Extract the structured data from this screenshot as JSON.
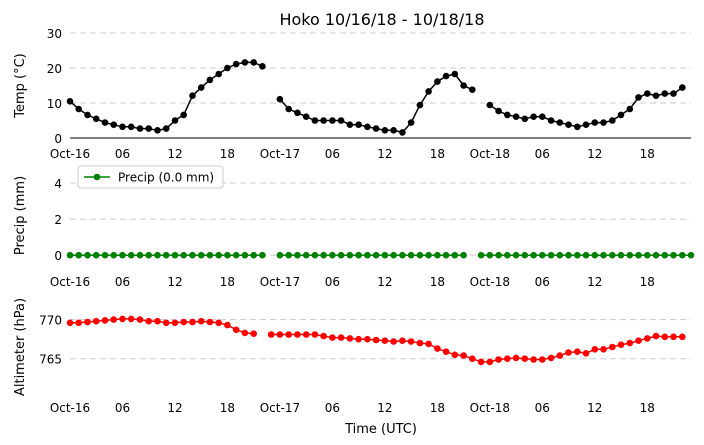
{
  "chart_data": {
    "title": "Hoko 10/16/18 - 10/18/18",
    "xlabel": "Time (UTC)",
    "x_unit": "hours since Oct-16 00 UTC",
    "x_range": [
      0,
      71
    ],
    "x_ticks": [
      {
        "v": 0,
        "label": "Oct-16"
      },
      {
        "v": 6,
        "label": "06"
      },
      {
        "v": 12,
        "label": "12"
      },
      {
        "v": 18,
        "label": "18"
      },
      {
        "v": 24,
        "label": "Oct-17"
      },
      {
        "v": 30,
        "label": "06"
      },
      {
        "v": 36,
        "label": "12"
      },
      {
        "v": 42,
        "label": "18"
      },
      {
        "v": 48,
        "label": "Oct-18"
      },
      {
        "v": 54,
        "label": "06"
      },
      {
        "v": 60,
        "label": "12"
      },
      {
        "v": 66,
        "label": "18"
      }
    ],
    "panels": [
      {
        "key": "temp",
        "type": "line",
        "ylabel": "Temp ($^\\circ$C)",
        "ylabel_text": "Temp (°C)",
        "ylim": [
          0,
          30
        ],
        "yticks": [
          0,
          10,
          20,
          30
        ],
        "grid": true,
        "color": "#000000",
        "x": [
          0,
          1,
          2,
          3,
          4,
          5,
          6,
          7,
          8,
          9,
          10,
          11,
          12,
          13,
          14,
          15,
          16,
          17,
          18,
          19,
          20,
          21,
          22,
          23,
          24,
          25,
          26,
          27,
          28,
          29,
          30,
          31,
          32,
          33,
          34,
          35,
          36,
          37,
          38,
          39,
          40,
          41,
          42,
          43,
          44,
          45,
          46,
          47,
          48,
          49,
          50,
          51,
          52,
          53,
          54,
          55,
          56,
          57,
          58,
          59,
          60,
          61,
          62,
          63,
          64,
          65,
          66,
          67,
          68,
          69,
          70,
          71
        ],
        "values": [
          10.5,
          8.3,
          6.6,
          5.5,
          4.4,
          3.8,
          3.2,
          3.2,
          2.7,
          2.7,
          2.2,
          2.7,
          5.0,
          6.6,
          12.1,
          14.4,
          16.6,
          18.3,
          20.0,
          21.1,
          21.6,
          21.6,
          20.5,
          null,
          11.1,
          8.3,
          7.2,
          6.1,
          5.0,
          5.0,
          5.0,
          5.0,
          3.8,
          3.8,
          3.2,
          2.7,
          2.2,
          2.2,
          1.6,
          4.4,
          9.4,
          13.3,
          16.1,
          17.7,
          18.3,
          15.0,
          13.8,
          null,
          9.4,
          7.7,
          6.6,
          6.1,
          5.5,
          6.1,
          6.1,
          5.0,
          4.4,
          3.8,
          3.2,
          3.8,
          4.4,
          4.4,
          5.0,
          6.6,
          8.3,
          11.6,
          12.7,
          12.1,
          12.7,
          12.7,
          14.4,
          null
        ]
      },
      {
        "key": "precip",
        "type": "line",
        "ylabel": "Precip (mm)",
        "ylim": [
          -0.6,
          5
        ],
        "yticks": [
          0,
          2,
          4
        ],
        "grid": true,
        "color": "#008000",
        "legend": {
          "label": "Precip (0.0 mm)",
          "loc": "upper left"
        },
        "x": [
          0,
          1,
          2,
          3,
          4,
          5,
          6,
          7,
          8,
          9,
          10,
          11,
          12,
          13,
          14,
          15,
          16,
          17,
          18,
          19,
          20,
          21,
          22,
          23,
          24,
          25,
          26,
          27,
          28,
          29,
          30,
          31,
          32,
          33,
          34,
          35,
          36,
          37,
          38,
          39,
          40,
          41,
          42,
          43,
          44,
          45,
          46,
          47,
          48,
          49,
          50,
          51,
          52,
          53,
          54,
          55,
          56,
          57,
          58,
          59,
          60,
          61,
          62,
          63,
          64,
          65,
          66,
          67,
          68,
          69,
          70,
          71
        ],
        "values": [
          0,
          0,
          0,
          0,
          0,
          0,
          0,
          0,
          0,
          0,
          0,
          0,
          0,
          0,
          0,
          0,
          0,
          0,
          0,
          0,
          0,
          0,
          0,
          null,
          0,
          0,
          0,
          0,
          0,
          0,
          0,
          0,
          0,
          0,
          0,
          0,
          0,
          0,
          0,
          0,
          0,
          0,
          0,
          0,
          0,
          0,
          null,
          0,
          0,
          0,
          0,
          0,
          0,
          0,
          0,
          0,
          0,
          0,
          0,
          0,
          0,
          0,
          0,
          0,
          0,
          0,
          0,
          0,
          0,
          0,
          0,
          0
        ]
      },
      {
        "key": "alt",
        "type": "line",
        "ylabel": "Altimeter (hPa)",
        "ylim": [
          761,
          772
        ],
        "yticks": [
          765,
          770
        ],
        "grid": true,
        "color": "#ff0000",
        "x": [
          0,
          1,
          2,
          3,
          4,
          5,
          6,
          7,
          8,
          9,
          10,
          11,
          12,
          13,
          14,
          15,
          16,
          17,
          18,
          19,
          20,
          21,
          22,
          23,
          24,
          25,
          26,
          27,
          28,
          29,
          30,
          31,
          32,
          33,
          34,
          35,
          36,
          37,
          38,
          39,
          40,
          41,
          42,
          43,
          44,
          45,
          46,
          47,
          48,
          49,
          50,
          51,
          52,
          53,
          54,
          55,
          56,
          57,
          58,
          59,
          60,
          61,
          62,
          63,
          64,
          65,
          66,
          67,
          68,
          69,
          70,
          71
        ],
        "values": [
          769.6,
          769.6,
          769.7,
          769.8,
          769.9,
          770.0,
          770.1,
          770.1,
          770.0,
          769.8,
          769.8,
          769.6,
          769.6,
          769.7,
          769.7,
          769.8,
          769.7,
          769.6,
          769.3,
          768.7,
          768.3,
          768.2,
          null,
          768.1,
          768.1,
          768.1,
          768.1,
          768.1,
          768.1,
          767.9,
          767.7,
          767.7,
          767.6,
          767.5,
          767.5,
          767.4,
          767.3,
          767.2,
          767.3,
          767.2,
          767.0,
          766.9,
          766.3,
          765.9,
          765.5,
          765.4,
          765.0,
          764.6,
          764.6,
          764.9,
          765.0,
          765.1,
          765.0,
          764.9,
          764.9,
          765.1,
          765.4,
          765.8,
          765.9,
          765.7,
          766.2,
          766.2,
          766.5,
          766.8,
          767.0,
          767.3,
          767.6,
          767.9,
          767.8,
          767.8,
          767.8,
          null
        ]
      }
    ]
  }
}
